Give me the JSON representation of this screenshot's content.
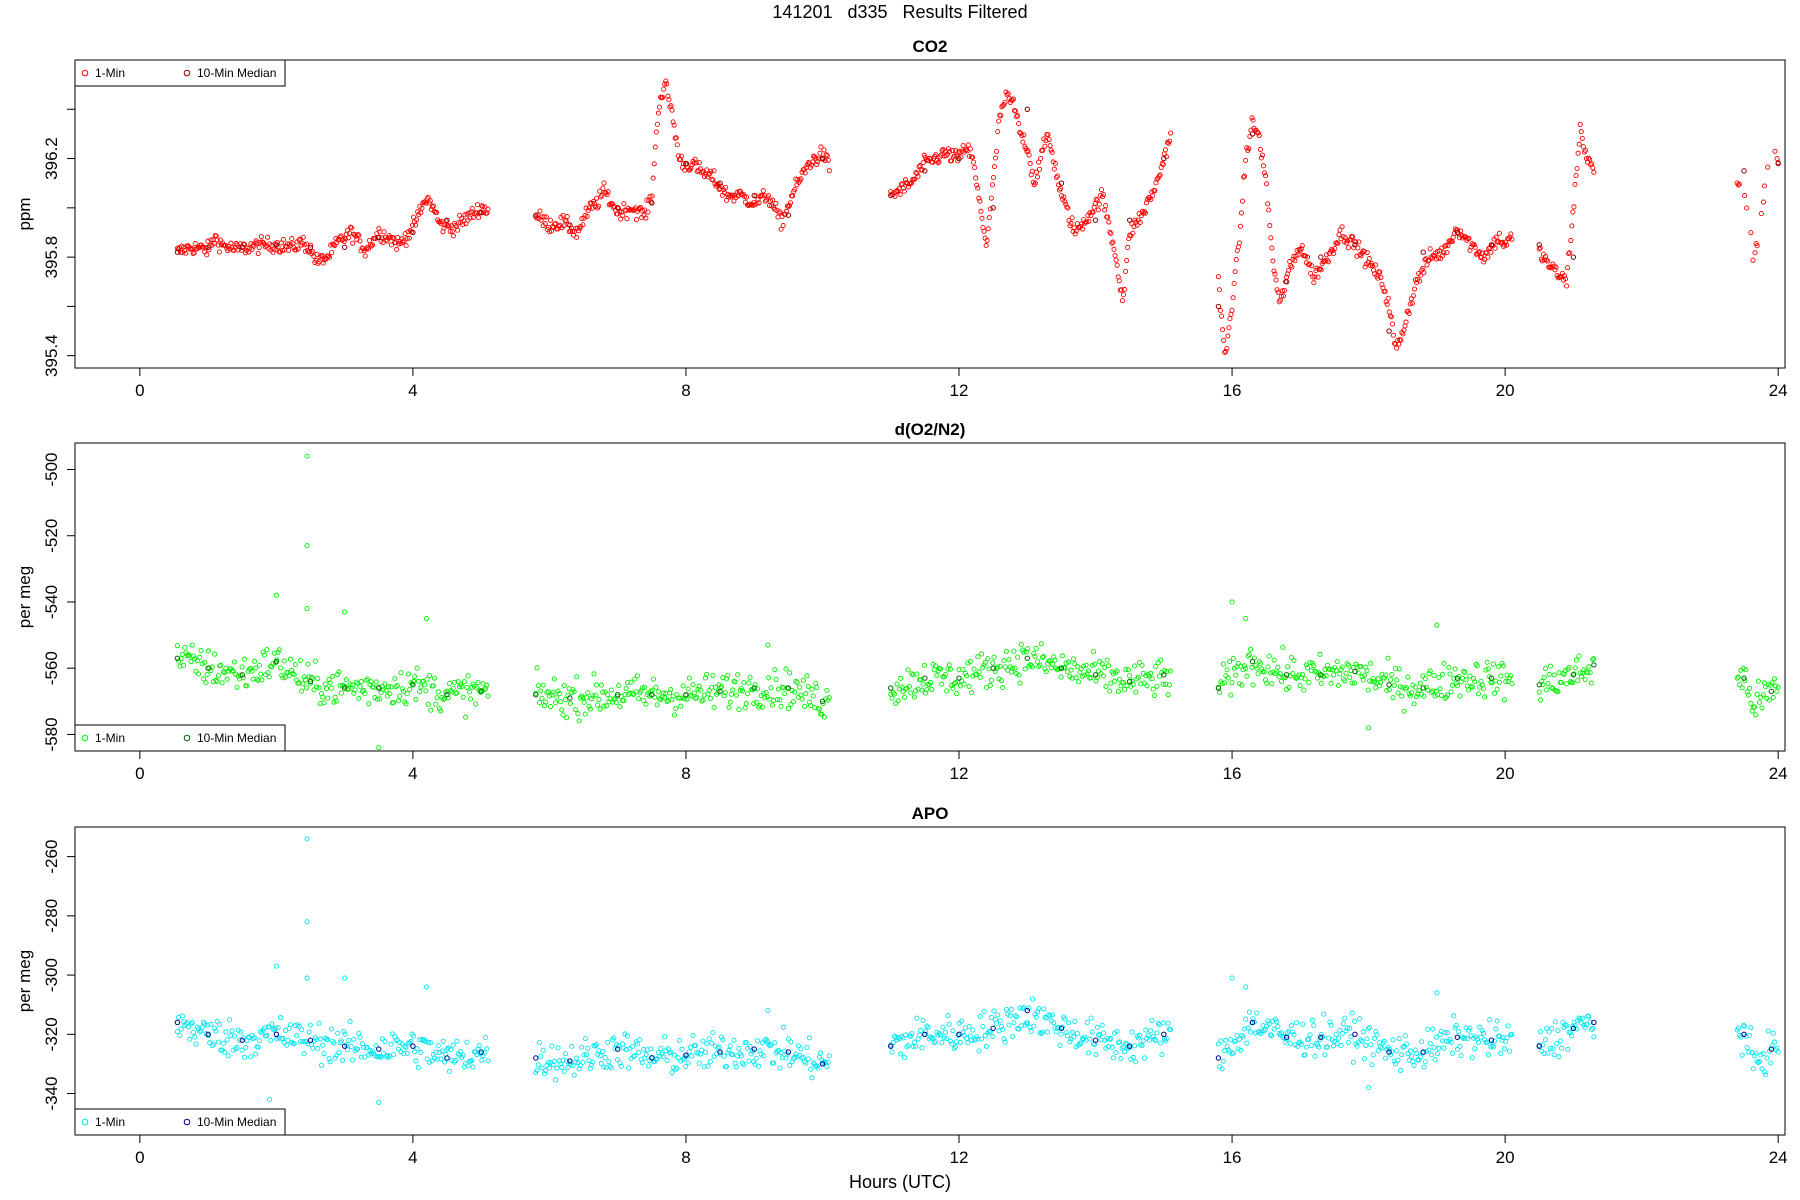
{
  "figure": {
    "title": "141201   d335   Results Filtered",
    "xlabel": "Hours (UTC)"
  },
  "chart_data": [
    {
      "type": "scatter",
      "title": "CO2",
      "xlabel": "",
      "ylabel": "ppm",
      "xlim": [
        -0.95,
        24.1
      ],
      "ylim": [
        395.35,
        396.6
      ],
      "xticks": [
        0,
        4,
        8,
        12,
        16,
        20,
        24
      ],
      "yticks": [
        395.4,
        395.6,
        395.8,
        396.0,
        396.2,
        396.4
      ],
      "yticklabels": [
        "395.4",
        "",
        "395.8",
        "",
        "396.2",
        ""
      ],
      "legend": {
        "position": "top-left",
        "entries": [
          "1-Min",
          "10-Min Median"
        ]
      },
      "colors": {
        "one_min": "#ff0000",
        "median": "#8b0000"
      },
      "series": [
        {
          "name": "1-Min",
          "x": [
            0.55,
            0.75,
            1.0,
            1.1,
            1.2,
            1.4,
            1.6,
            1.8,
            2.0,
            2.2,
            2.4,
            2.5,
            2.6,
            2.75,
            2.9,
            3.1,
            3.3,
            3.5,
            3.65,
            3.8,
            4.0,
            4.2,
            4.3,
            4.4,
            4.6,
            4.8,
            5.0,
            5.1,
            5.8,
            6.0,
            6.2,
            6.4,
            6.5,
            6.6,
            6.7,
            6.8,
            7.0,
            7.2,
            7.4,
            7.5,
            7.6,
            7.7,
            7.8,
            7.9,
            8.0,
            8.1,
            8.2,
            8.4,
            8.6,
            8.8,
            9.0,
            9.2,
            9.4,
            9.6,
            9.8,
            10.0,
            10.1,
            11.0,
            11.3,
            11.5,
            11.8,
            12.0,
            12.1,
            12.2,
            12.3,
            12.4,
            12.5,
            12.6,
            12.7,
            12.8,
            12.9,
            13.0,
            13.1,
            13.2,
            13.3,
            13.5,
            13.7,
            13.9,
            14.1,
            14.3,
            14.4,
            14.5,
            14.7,
            14.9,
            15.0,
            15.1,
            15.8,
            15.9,
            16.0,
            16.1,
            16.2,
            16.3,
            16.4,
            16.5,
            16.6,
            16.7,
            16.8,
            17.0,
            17.2,
            17.4,
            17.6,
            17.8,
            18.0,
            18.2,
            18.3,
            18.4,
            18.5,
            18.7,
            18.9,
            19.1,
            19.3,
            19.5,
            19.7,
            19.9,
            20.0,
            20.1,
            20.5,
            20.7,
            20.9,
            21.0,
            21.1,
            21.2,
            21.3,
            23.4,
            23.5,
            23.65,
            23.9,
            24.0
          ],
          "y": [
            395.82,
            395.84,
            395.83,
            395.88,
            395.85,
            395.83,
            395.84,
            395.85,
            395.85,
            395.84,
            395.86,
            395.83,
            395.78,
            395.8,
            395.86,
            395.9,
            395.83,
            395.9,
            395.88,
            395.85,
            395.92,
            396.04,
            396.0,
            395.93,
            395.92,
            395.96,
            396.0,
            395.99,
            395.97,
            395.93,
            395.94,
            395.9,
            395.95,
            396.0,
            396.02,
            396.07,
            395.98,
            396.0,
            395.97,
            396.05,
            396.42,
            396.5,
            396.38,
            396.2,
            396.17,
            396.18,
            396.15,
            396.12,
            396.05,
            396.05,
            396.02,
            396.05,
            395.94,
            396.08,
            396.18,
            396.22,
            396.17,
            396.05,
            396.1,
            396.18,
            396.22,
            396.2,
            396.25,
            396.2,
            396.02,
            395.85,
            396.1,
            396.38,
            396.45,
            396.42,
            396.3,
            396.25,
            396.1,
            396.2,
            396.3,
            396.05,
            395.9,
            395.97,
            396.05,
            395.8,
            395.62,
            395.9,
            395.98,
            396.1,
            396.2,
            396.3,
            395.7,
            395.38,
            395.62,
            395.85,
            396.2,
            396.35,
            396.28,
            396.1,
            395.78,
            395.6,
            395.72,
            395.85,
            395.72,
            395.8,
            395.9,
            395.85,
            395.78,
            395.7,
            395.6,
            395.42,
            395.5,
            395.7,
            395.8,
            395.82,
            395.92,
            395.85,
            395.8,
            395.88,
            395.85,
            395.88,
            395.82,
            395.75,
            395.7,
            396.0,
            396.32,
            396.2,
            396.15,
            396.1,
            396.07,
            395.78,
            396.27,
            396.2
          ],
          "segments": [
            [
              0.55,
              5.1
            ],
            [
              5.8,
              10.1
            ],
            [
              11.0,
              15.1
            ],
            [
              15.8,
              20.1
            ],
            [
              20.5,
              21.3
            ],
            [
              23.4,
              24.0
            ]
          ]
        },
        {
          "name": "10-Min Median",
          "x": [
            0.55,
            1.0,
            1.5,
            2.0,
            2.5,
            3.0,
            3.5,
            4.0,
            4.5,
            5.0,
            5.8,
            6.3,
            7.0,
            7.5,
            8.0,
            8.5,
            9.0,
            9.5,
            10.0,
            11.0,
            11.5,
            12.0,
            12.5,
            13.0,
            13.5,
            14.0,
            14.5,
            15.0,
            15.8,
            16.3,
            16.8,
            17.3,
            17.8,
            18.3,
            18.8,
            19.3,
            19.8,
            20.5,
            21.0,
            23.5,
            24.0
          ],
          "y": [
            395.82,
            395.84,
            395.84,
            395.85,
            395.84,
            395.84,
            395.88,
            395.9,
            395.95,
            395.98,
            395.97,
            395.93,
            396.0,
            396.02,
            396.18,
            396.1,
            396.05,
            395.97,
            396.2,
            396.05,
            396.15,
            396.2,
            396.0,
            396.4,
            396.1,
            395.95,
            395.95,
            396.2,
            395.6,
            396.3,
            395.7,
            395.8,
            395.85,
            395.5,
            395.82,
            395.9,
            395.85,
            395.85,
            395.8,
            396.15,
            396.18
          ]
        }
      ]
    },
    {
      "type": "scatter",
      "title": "d(O2/N2)",
      "xlabel": "",
      "ylabel": "per meg",
      "xlim": [
        -0.95,
        24.1
      ],
      "ylim": [
        -585,
        -492
      ],
      "xticks": [
        0,
        4,
        8,
        12,
        16,
        20,
        24
      ],
      "yticks": [
        -500,
        -520,
        -540,
        -560,
        -580
      ],
      "yticklabels": [
        "-500",
        "-520",
        "-540",
        "-560",
        "-580"
      ],
      "legend": {
        "position": "bottom-left",
        "entries": [
          "1-Min",
          "10-Min Median"
        ]
      },
      "colors": {
        "one_min": "#00ee00",
        "median": "#006400"
      },
      "series": [
        {
          "name": "1-Min",
          "x": [
            0.55,
            1.0,
            1.5,
            2.0,
            2.5,
            3.0,
            3.5,
            4.0,
            4.5,
            5.0,
            5.8,
            6.3,
            7.0,
            7.5,
            8.0,
            8.5,
            9.0,
            9.5,
            10.0,
            11.0,
            11.5,
            12.0,
            12.5,
            13.0,
            13.5,
            14.0,
            14.5,
            15.0,
            15.8,
            16.3,
            16.8,
            17.3,
            17.8,
            18.3,
            18.8,
            19.3,
            19.8,
            20.5,
            21.0,
            21.3,
            23.5,
            23.65,
            23.9
          ],
          "y": [
            -557,
            -560,
            -562,
            -558,
            -565,
            -566,
            -566,
            -565,
            -568,
            -567,
            -568,
            -569,
            -568,
            -568,
            -568,
            -567,
            -566,
            -566,
            -570,
            -566,
            -563,
            -563,
            -560,
            -557,
            -560,
            -562,
            -564,
            -563,
            -566,
            -558,
            -562,
            -562,
            -561,
            -565,
            -566,
            -563,
            -563,
            -565,
            -562,
            -560,
            -563,
            -571,
            -567
          ],
          "outliers": [
            [
              2.45,
              -496
            ],
            [
              2.45,
              -523
            ],
            [
              2.45,
              -542
            ],
            [
              2.0,
              -538
            ],
            [
              1.9,
              -583
            ],
            [
              3.0,
              -543
            ],
            [
              3.5,
              -584
            ],
            [
              4.2,
              -545
            ],
            [
              9.2,
              -553
            ],
            [
              16.0,
              -540
            ],
            [
              16.2,
              -545
            ],
            [
              19.0,
              -547
            ],
            [
              18.0,
              -578
            ]
          ]
        },
        {
          "name": "10-Min Median",
          "x": [
            0.55,
            1.0,
            1.5,
            2.0,
            2.5,
            3.0,
            3.5,
            4.0,
            4.5,
            5.0,
            5.8,
            6.3,
            7.0,
            7.5,
            8.0,
            8.5,
            9.0,
            9.5,
            10.0,
            11.0,
            11.5,
            12.0,
            12.5,
            13.0,
            13.5,
            14.0,
            14.5,
            15.0,
            15.8,
            16.3,
            16.8,
            17.3,
            17.8,
            18.3,
            18.8,
            19.3,
            19.8,
            20.5,
            21.0,
            21.3,
            23.5,
            23.9
          ],
          "y": [
            -557,
            -560,
            -562,
            -558,
            -564,
            -566,
            -566,
            -565,
            -568,
            -567,
            -568,
            -569,
            -568,
            -568,
            -568,
            -567,
            -566,
            -566,
            -570,
            -566,
            -563,
            -563,
            -560,
            -557,
            -560,
            -562,
            -564,
            -562,
            -566,
            -558,
            -562,
            -562,
            -561,
            -565,
            -566,
            -563,
            -563,
            -565,
            -562,
            -559,
            -563,
            -567
          ]
        }
      ]
    },
    {
      "type": "scatter",
      "title": "APO",
      "xlabel": "Hours (UTC)",
      "ylabel": "per meg",
      "xlim": [
        -0.95,
        24.1
      ],
      "ylim": [
        -354,
        -250
      ],
      "xticks": [
        0,
        4,
        8,
        12,
        16,
        20,
        24
      ],
      "yticks": [
        -260,
        -280,
        -300,
        -320,
        -340
      ],
      "yticklabels": [
        "-260",
        "-280",
        "-300",
        "-320",
        "-340"
      ],
      "legend": {
        "position": "bottom-left",
        "entries": [
          "1-Min",
          "10-Min Median"
        ]
      },
      "colors": {
        "one_min": "#00e5ee",
        "median": "#00008b"
      },
      "series": [
        {
          "name": "1-Min",
          "x": [
            0.55,
            1.0,
            1.5,
            2.0,
            2.5,
            3.0,
            3.5,
            4.0,
            4.5,
            5.0,
            5.8,
            6.3,
            7.0,
            7.5,
            8.0,
            8.5,
            9.0,
            9.5,
            10.0,
            11.0,
            11.5,
            12.0,
            12.5,
            13.0,
            13.5,
            14.0,
            14.5,
            15.0,
            15.8,
            16.3,
            16.8,
            17.3,
            17.8,
            18.3,
            18.8,
            19.3,
            19.8,
            20.5,
            21.0,
            21.3,
            23.5,
            23.65,
            23.9
          ],
          "y": [
            -316,
            -320,
            -322,
            -320,
            -322,
            -324,
            -325,
            -324,
            -328,
            -326,
            -328,
            -329,
            -325,
            -328,
            -327,
            -326,
            -325,
            -326,
            -330,
            -324,
            -320,
            -320,
            -318,
            -313,
            -318,
            -322,
            -324,
            -320,
            -328,
            -316,
            -321,
            -321,
            -320,
            -326,
            -326,
            -321,
            -322,
            -324,
            -318,
            -316,
            -320,
            -330,
            -325
          ],
          "outliers": [
            [
              2.45,
              -254
            ],
            [
              2.45,
              -282
            ],
            [
              2.45,
              -301
            ],
            [
              2.0,
              -297
            ],
            [
              1.9,
              -342
            ],
            [
              3.0,
              -301
            ],
            [
              3.5,
              -343
            ],
            [
              4.2,
              -304
            ],
            [
              9.2,
              -312
            ],
            [
              16.0,
              -301
            ],
            [
              16.2,
              -304
            ],
            [
              19.0,
              -306
            ],
            [
              18.0,
              -338
            ]
          ]
        },
        {
          "name": "10-Min Median",
          "x": [
            0.55,
            1.0,
            1.5,
            2.0,
            2.5,
            3.0,
            3.5,
            4.0,
            4.5,
            5.0,
            5.8,
            6.3,
            7.0,
            7.5,
            8.0,
            8.5,
            9.0,
            9.5,
            10.0,
            11.0,
            11.5,
            12.0,
            12.5,
            13.0,
            13.5,
            14.0,
            14.5,
            15.0,
            15.8,
            16.3,
            16.8,
            17.3,
            17.8,
            18.3,
            18.8,
            19.3,
            19.8,
            20.5,
            21.0,
            21.3,
            23.5,
            23.9
          ],
          "y": [
            -316,
            -320,
            -322,
            -320,
            -322,
            -324,
            -325,
            -324,
            -328,
            -326,
            -328,
            -329,
            -325,
            -328,
            -327,
            -326,
            -325,
            -326,
            -330,
            -324,
            -320,
            -320,
            -318,
            -312,
            -318,
            -322,
            -324,
            -320,
            -328,
            -316,
            -321,
            -321,
            -320,
            -326,
            -326,
            -321,
            -322,
            -324,
            -318,
            -316,
            -320,
            -325
          ]
        }
      ]
    }
  ]
}
